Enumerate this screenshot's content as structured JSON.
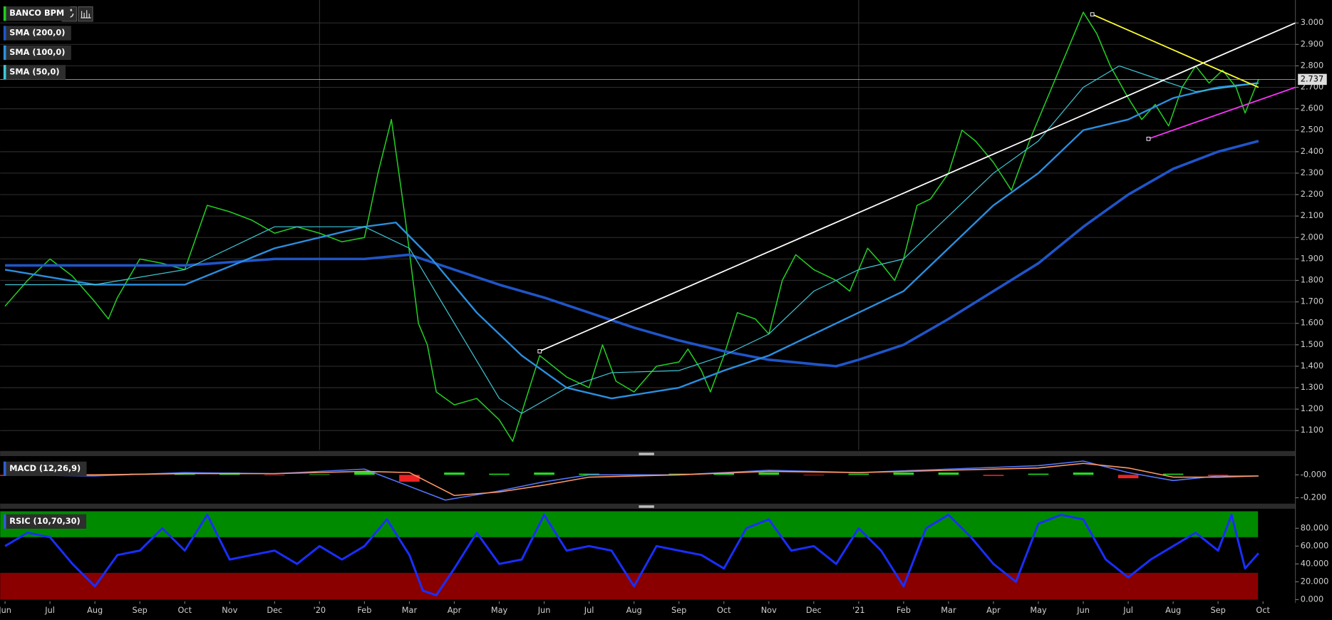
{
  "chart_data": [
    {
      "type": "line",
      "xlim": [
        -0.11,
        28.72
      ],
      "ylim": [
        1.009,
        3.107
      ],
      "yticks": [
        {
          "value": 1.1,
          "label": "1.100"
        },
        {
          "value": 1.2,
          "label": "1.200"
        },
        {
          "value": 1.3,
          "label": "1.300"
        },
        {
          "value": 1.4,
          "label": "1.400"
        },
        {
          "value": 1.5,
          "label": "1.500"
        },
        {
          "value": 1.6,
          "label": "1.600"
        },
        {
          "value": 1.7,
          "label": "1.700"
        },
        {
          "value": 1.8,
          "label": "1.800"
        },
        {
          "value": 1.9,
          "label": "1.900"
        },
        {
          "value": 2.0,
          "label": "2.000"
        },
        {
          "value": 2.1,
          "label": "2.100"
        },
        {
          "value": 2.2,
          "label": "2.200"
        },
        {
          "value": 2.3,
          "label": "2.300"
        },
        {
          "value": 2.4,
          "label": "2.400"
        },
        {
          "value": 2.5,
          "label": "2.500"
        },
        {
          "value": 2.6,
          "label": "2.600"
        },
        {
          "value": 2.7,
          "label": "2.700"
        },
        {
          "value": 2.8,
          "label": "2.800"
        },
        {
          "value": 2.9,
          "label": "2.900"
        },
        {
          "value": 3.0,
          "label": "3.000"
        }
      ],
      "grid": true,
      "xgrid": [
        7,
        19
      ],
      "last": 2.737,
      "series": [
        {
          "name": "BANCO BPM",
          "color": "#22cc22",
          "x": [
            0,
            0.5,
            1,
            1.5,
            2,
            2.3,
            2.5,
            3,
            3.5,
            4,
            4.5,
            5,
            5.5,
            6,
            6.5,
            7,
            7.5,
            8,
            8.3,
            8.6,
            8.9,
            9.2,
            9.4,
            9.6,
            10,
            10.5,
            11,
            11.3,
            11.9,
            12.5,
            13,
            13.3,
            13.6,
            14,
            14.5,
            15,
            15.2,
            15.5,
            15.7,
            16,
            16.3,
            16.7,
            17,
            17.3,
            17.6,
            18,
            18.5,
            18.8,
            19.2,
            19.5,
            19.8,
            20,
            20.3,
            20.6,
            21,
            21.3,
            21.6,
            22,
            22.4,
            22.8,
            23.1,
            23.4,
            23.7,
            24,
            24.3,
            24.6,
            25,
            25.3,
            25.6,
            25.9,
            26.2,
            26.5,
            26.8,
            27.1,
            27.4,
            27.6,
            27.9
          ],
          "values": [
            1.68,
            1.8,
            1.9,
            1.82,
            1.7,
            1.62,
            1.72,
            1.9,
            1.88,
            1.85,
            2.15,
            2.12,
            2.08,
            2.02,
            2.05,
            2.02,
            1.98,
            2.0,
            2.3,
            2.55,
            2.1,
            1.6,
            1.5,
            1.28,
            1.22,
            1.25,
            1.15,
            1.05,
            1.45,
            1.35,
            1.3,
            1.5,
            1.33,
            1.28,
            1.4,
            1.42,
            1.48,
            1.38,
            1.28,
            1.45,
            1.65,
            1.62,
            1.55,
            1.8,
            1.92,
            1.85,
            1.8,
            1.75,
            1.95,
            1.88,
            1.8,
            1.9,
            2.15,
            2.18,
            2.3,
            2.5,
            2.45,
            2.35,
            2.22,
            2.45,
            2.6,
            2.75,
            2.9,
            3.05,
            2.95,
            2.8,
            2.65,
            2.55,
            2.62,
            2.52,
            2.7,
            2.8,
            2.72,
            2.78,
            2.7,
            2.58,
            2.737
          ]
        },
        {
          "name": "SMA (200,0)",
          "color": "#1f55c8",
          "width": 3,
          "x": [
            0,
            2,
            4,
            6,
            8,
            9,
            10,
            11,
            12,
            13,
            14,
            15,
            16,
            17,
            18,
            18.5,
            19,
            20,
            21,
            22,
            23,
            24,
            25,
            26,
            27,
            27.9
          ],
          "values": [
            1.87,
            1.87,
            1.87,
            1.9,
            1.9,
            1.92,
            1.85,
            1.78,
            1.72,
            1.65,
            1.58,
            1.52,
            1.47,
            1.43,
            1.41,
            1.4,
            1.43,
            1.5,
            1.62,
            1.75,
            1.88,
            2.05,
            2.2,
            2.32,
            2.4,
            2.45
          ]
        },
        {
          "name": "SMA (100,0)",
          "color": "#2a8fe0",
          "width": 2,
          "x": [
            0,
            2,
            4,
            6,
            8,
            8.7,
            9.5,
            10.5,
            11.5,
            12.5,
            13.5,
            15,
            16,
            17,
            18,
            19,
            20,
            21,
            22,
            23,
            24,
            25,
            26,
            27,
            27.9
          ],
          "values": [
            1.85,
            1.78,
            1.78,
            1.95,
            2.05,
            2.07,
            1.9,
            1.65,
            1.45,
            1.3,
            1.25,
            1.3,
            1.38,
            1.45,
            1.55,
            1.65,
            1.75,
            1.95,
            2.15,
            2.3,
            2.5,
            2.55,
            2.65,
            2.7,
            2.72
          ]
        },
        {
          "name": "SMA (50,0)",
          "color": "#3fc8d8",
          "width": 1,
          "x": [
            0,
            2,
            4,
            6,
            8,
            9,
            10,
            11,
            11.5,
            12.5,
            13.5,
            15,
            16,
            17,
            18,
            19,
            20,
            21,
            22,
            23,
            24,
            24.8,
            25.5,
            26.5,
            27.9
          ],
          "values": [
            1.78,
            1.78,
            1.85,
            2.05,
            2.05,
            1.95,
            1.6,
            1.25,
            1.18,
            1.3,
            1.37,
            1.38,
            1.45,
            1.55,
            1.75,
            1.85,
            1.9,
            2.1,
            2.3,
            2.45,
            2.7,
            2.8,
            2.75,
            2.68,
            2.72
          ]
        }
      ],
      "trendlines": [
        {
          "color": "#ffffff",
          "x": [
            11.9,
            28.72
          ],
          "values": [
            1.47,
            3.0
          ]
        },
        {
          "color": "#ffff33",
          "x": [
            24.2,
            27.9
          ],
          "values": [
            3.04,
            2.7
          ]
        },
        {
          "color": "#ff33ff",
          "x": [
            25.45,
            28.72
          ],
          "values": [
            2.46,
            2.7
          ]
        }
      ]
    },
    {
      "type": "combo",
      "title": "MACD (12,26,9)",
      "xlim": [
        -0.11,
        28.72
      ],
      "ylim": [
        -0.244,
        0.156
      ],
      "yticks": [
        {
          "value": 0,
          "label": "-0.000"
        },
        {
          "value": -0.2,
          "label": "-0.200"
        }
      ],
      "up_color": "#22dd22",
      "down_color": "#ee2222",
      "hist_x": [
        0,
        1,
        2,
        3,
        4,
        5,
        6,
        7,
        8,
        9,
        10,
        11,
        12,
        13,
        14,
        15,
        16,
        17,
        18,
        19,
        20,
        21,
        22,
        23,
        24,
        25,
        26,
        27
      ],
      "hist": [
        -0.01,
        0.01,
        -0.01,
        0.01,
        0.005,
        0.02,
        -0.005,
        0.005,
        0.03,
        -0.06,
        0.02,
        0.01,
        0.02,
        0.01,
        0.005,
        0.01,
        0.02,
        0.02,
        -0.005,
        0.01,
        0.02,
        0.02,
        -0.01,
        0.01,
        0.02,
        -0.03,
        0.01,
        -0.01
      ],
      "series": [
        {
          "color": "#5577ff",
          "x": [
            0,
            2,
            4,
            6,
            8,
            9,
            9.8,
            11,
            12,
            13,
            15,
            17,
            19,
            21,
            23,
            24,
            25,
            26,
            27,
            27.9
          ],
          "values": [
            0,
            -0.01,
            0.02,
            0.01,
            0.05,
            -0.1,
            -0.22,
            -0.14,
            -0.06,
            0,
            0,
            0.04,
            0.02,
            0.05,
            0.08,
            0.12,
            0.02,
            -0.05,
            -0.01,
            -0.01
          ]
        },
        {
          "color": "#ff9966",
          "x": [
            0,
            2,
            4,
            6,
            8,
            9,
            10,
            11,
            12,
            13,
            15,
            17,
            19,
            21,
            23,
            24,
            25,
            26,
            27,
            27.9
          ],
          "values": [
            0,
            0,
            0.01,
            0.01,
            0.03,
            0.02,
            -0.18,
            -0.15,
            -0.09,
            -0.02,
            0,
            0.03,
            0.02,
            0.04,
            0.06,
            0.1,
            0.06,
            -0.02,
            -0.02,
            -0.01
          ]
        }
      ]
    },
    {
      "type": "line",
      "title": "RSIC (10,70,30)",
      "xlim": [
        -0.11,
        28.72
      ],
      "ylim": [
        -1.9,
        100.95
      ],
      "yticks": [
        {
          "value": 0,
          "label": "0.000"
        },
        {
          "value": 20,
          "label": "20.000"
        },
        {
          "value": 40,
          "label": "40.000"
        },
        {
          "value": 60,
          "label": "60.000"
        },
        {
          "value": 80,
          "label": "80.000"
        }
      ],
      "overbought": 70,
      "oversold": 30,
      "xticks": [
        {
          "value": 0,
          "label": "Jun"
        },
        {
          "value": 1,
          "label": "Jul"
        },
        {
          "value": 2,
          "label": "Aug"
        },
        {
          "value": 3,
          "label": "Sep"
        },
        {
          "value": 4,
          "label": "Oct"
        },
        {
          "value": 5,
          "label": "Nov"
        },
        {
          "value": 6,
          "label": "Dec"
        },
        {
          "value": 7,
          "label": "'20"
        },
        {
          "value": 8,
          "label": "Feb"
        },
        {
          "value": 9,
          "label": "Mar"
        },
        {
          "value": 10,
          "label": "Apr"
        },
        {
          "value": 11,
          "label": "May"
        },
        {
          "value": 12,
          "label": "Jun"
        },
        {
          "value": 13,
          "label": "Jul"
        },
        {
          "value": 14,
          "label": "Aug"
        },
        {
          "value": 15,
          "label": "Sep"
        },
        {
          "value": 16,
          "label": "Oct"
        },
        {
          "value": 17,
          "label": "Nov"
        },
        {
          "value": 18,
          "label": "Dec"
        },
        {
          "value": 19,
          "label": "'21"
        },
        {
          "value": 20,
          "label": "Feb"
        },
        {
          "value": 21,
          "label": "Mar"
        },
        {
          "value": 22,
          "label": "Apr"
        },
        {
          "value": 23,
          "label": "May"
        },
        {
          "value": 24,
          "label": "Jun"
        },
        {
          "value": 25,
          "label": "Jul"
        },
        {
          "value": 26,
          "label": "Aug"
        },
        {
          "value": 27,
          "label": "Sep"
        },
        {
          "value": 28,
          "label": "Oct"
        }
      ],
      "series": [
        {
          "color": "#1a2eff",
          "width": 2.5,
          "x": [
            0,
            0.5,
            1,
            1.5,
            2,
            2.5,
            3,
            3.5,
            4,
            4.5,
            5,
            5.5,
            6,
            6.5,
            7,
            7.5,
            8,
            8.5,
            9,
            9.3,
            9.6,
            10,
            10.5,
            11,
            11.5,
            12,
            12.5,
            13,
            13.5,
            14,
            14.5,
            15,
            15.5,
            16,
            16.5,
            17,
            17.5,
            18,
            18.5,
            19,
            19.5,
            20,
            20.5,
            21,
            21.5,
            22,
            22.5,
            23,
            23.5,
            24,
            24.5,
            25,
            25.5,
            26,
            26.5,
            27,
            27.3,
            27.6,
            27.9
          ],
          "values": [
            60,
            75,
            70,
            40,
            15,
            50,
            55,
            80,
            55,
            95,
            45,
            50,
            55,
            40,
            60,
            45,
            60,
            90,
            50,
            10,
            5,
            35,
            75,
            40,
            45,
            95,
            55,
            60,
            55,
            15,
            60,
            55,
            50,
            35,
            80,
            90,
            55,
            60,
            40,
            80,
            55,
            15,
            80,
            95,
            70,
            40,
            20,
            85,
            95,
            90,
            45,
            25,
            45,
            60,
            75,
            55,
            95,
            35,
            52
          ]
        }
      ]
    }
  ]
}
